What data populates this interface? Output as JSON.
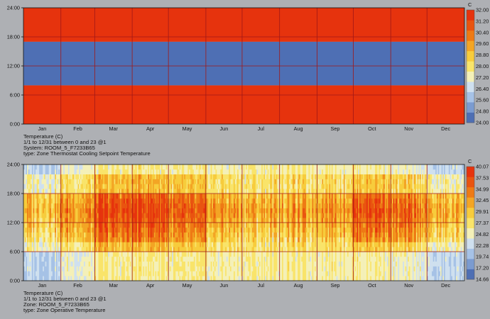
{
  "chart_data": [
    {
      "type": "heatmap",
      "title": "Temperature (C)",
      "info_lines": [
        "Temperature (C)",
        "1/1 to 12/31 between 0 and 23 @1",
        "System: ROOM_5_F7233B65",
        "type: Zone Thermostat Cooling Setpoint Temperature"
      ],
      "x_tick_labels": [
        "Jan",
        "Feb",
        "Mar",
        "Apr",
        "May",
        "Jun",
        "Jul",
        "Aug",
        "Sep",
        "Oct",
        "Nov",
        "Dec"
      ],
      "y_tick_labels": [
        "0:00",
        "6:00",
        "12:00",
        "18:00",
        "24:00"
      ],
      "ylim": [
        0,
        24
      ],
      "colorbar_unit": "C",
      "colorbar_labels": [
        "24.00",
        "24.80",
        "25.60",
        "26.40",
        "27.20",
        "28.00",
        "28.80",
        "29.60",
        "30.40",
        "31.20",
        "32.00"
      ],
      "colorbar_range": [
        24.0,
        32.0
      ],
      "bands": [
        {
          "from_hour": 0,
          "to_hour": 8,
          "value": 32.0
        },
        {
          "from_hour": 8,
          "to_hour": 17,
          "value": 24.0
        },
        {
          "from_hour": 17,
          "to_hour": 24,
          "value": 32.0
        }
      ]
    },
    {
      "type": "heatmap",
      "title": "Temperature (C)",
      "info_lines": [
        "Temperature (C)",
        "1/1 to 12/31 between 0 and 23 @1",
        "Zone: ROOM_5_F7233B65",
        "type: Zone Operative Temperature"
      ],
      "x_tick_labels": [
        "Jan",
        "Feb",
        "Mar",
        "Apr",
        "May",
        "Jun",
        "Jul",
        "Aug",
        "Sep",
        "Oct",
        "Nov",
        "Dec"
      ],
      "y_tick_labels": [
        "0:00",
        "6:00",
        "12:00",
        "18:00",
        "24:00"
      ],
      "ylim": [
        0,
        24
      ],
      "colorbar_unit": "C",
      "colorbar_labels": [
        "14.66",
        "17.20",
        "19.74",
        "22.28",
        "24.82",
        "27.37",
        "29.91",
        "32.45",
        "34.99",
        "37.53",
        "40.07"
      ],
      "colorbar_range": [
        14.66,
        40.07
      ],
      "monthly_occupied_hour_temps": [
        28.5,
        31.0,
        34.5,
        35.5,
        32.0,
        30.0,
        29.0,
        29.5,
        31.0,
        34.5,
        32.0,
        28.5
      ],
      "monthly_night_temps": [
        22.0,
        24.5,
        26.0,
        26.5,
        25.5,
        25.5,
        26.0,
        26.0,
        26.0,
        26.0,
        24.5,
        22.0
      ]
    }
  ],
  "colors": {
    "background": "#aeb0b4",
    "scale": [
      "#4e6fb4",
      "#7b9bd0",
      "#a6c2e6",
      "#cfe0ef",
      "#f4f0b8",
      "#f9e46a",
      "#f7cc3c",
      "#f3a524",
      "#ee7a14",
      "#e95410",
      "#e6330d"
    ],
    "grid": "#a01818",
    "axis": "#111111"
  }
}
